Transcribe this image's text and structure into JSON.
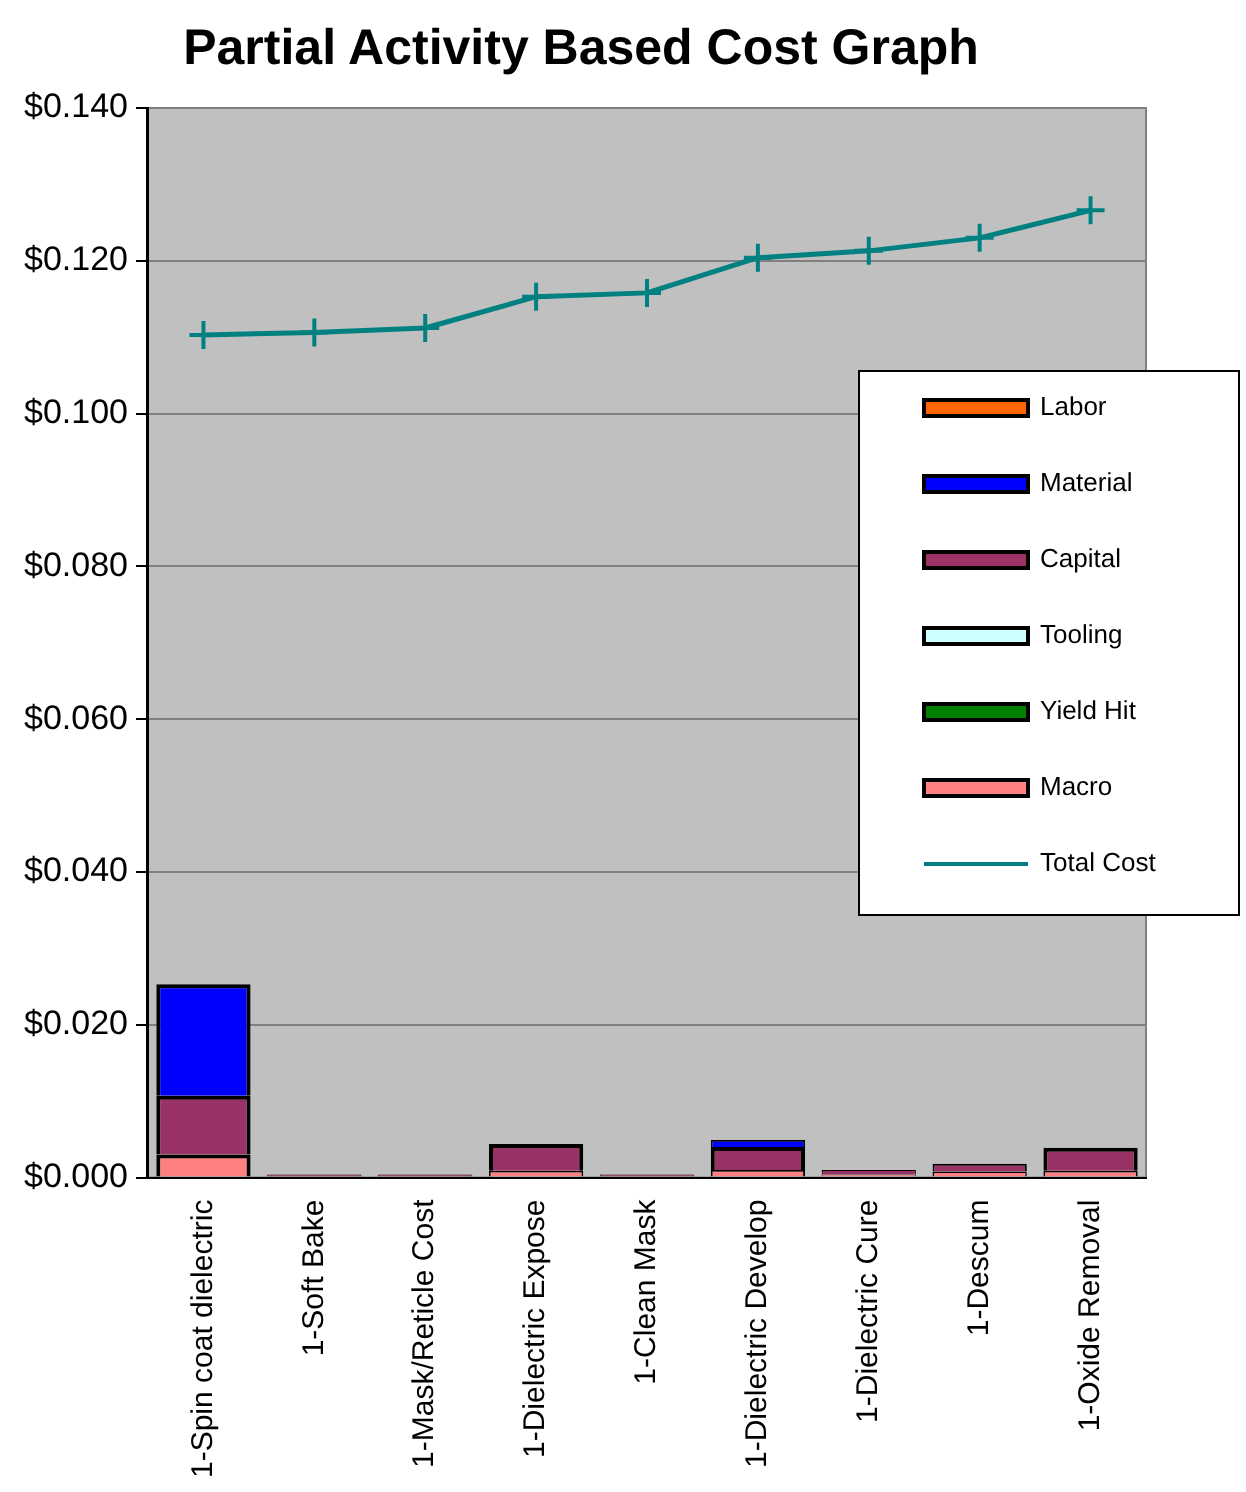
{
  "chart_data": {
    "type": "bar",
    "title": "Partial Activity Based Cost Graph",
    "stacked": true,
    "legend": "right",
    "grid": "y",
    "marker": "cross",
    "categories": [
      "1-Spin coat dielectric",
      "1-Soft Bake",
      "1-Mask/Reticle Cost",
      "1-Dielectric Expose",
      "1-Clean Mask",
      "1-Dielectric Develop",
      "1-Dielectric Cure",
      "1-Descum",
      "1-Oxide Removal"
    ],
    "ylim": [
      0,
      0.14
    ],
    "yticks": [
      {
        "value": 0,
        "label": "$0.000"
      },
      {
        "value": 0.02,
        "label": "$0.020"
      },
      {
        "value": 0.04,
        "label": "$0.040"
      },
      {
        "value": 0.06,
        "label": "$0.060"
      },
      {
        "value": 0.08,
        "label": "$0.080"
      },
      {
        "value": 0.1,
        "label": "$0.100"
      },
      {
        "value": 0.12,
        "label": "$0.120"
      },
      {
        "value": 0.14,
        "label": "$0.140"
      }
    ],
    "series": [
      {
        "name": "Macro",
        "color": "#ff8080",
        "values": [
          0.003,
          null,
          null,
          0.0009,
          null,
          0.001,
          0.0004,
          0.0008,
          0.0009
        ]
      },
      {
        "name": "Yield Hit",
        "color": "#008000",
        "values": [
          0,
          0,
          0,
          0,
          0,
          0,
          0,
          0,
          0
        ]
      },
      {
        "name": "Tooling",
        "color": "#ccffff",
        "values": [
          0,
          0,
          0,
          0,
          0,
          0,
          0,
          0,
          0
        ]
      },
      {
        "name": "Capital",
        "color": "#993366",
        "values": [
          0.0077,
          0.0004,
          0.0004,
          0.0035,
          0.0004,
          0.003,
          0.0006,
          0.001,
          0.003
        ]
      },
      {
        "name": "Material",
        "color": "#0000ff",
        "values": [
          0.0146,
          0,
          0,
          0,
          0,
          0.0009,
          0,
          0,
          0
        ]
      },
      {
        "name": "Labor",
        "color": "#ff6600",
        "values": [
          0,
          0,
          0,
          0,
          0,
          0,
          0,
          0,
          0
        ]
      },
      {
        "name": "Total Cost",
        "type": "line",
        "color": "#008080",
        "values": [
          0.1103,
          0.1106,
          0.1112,
          0.1153,
          0.1158,
          0.1204,
          0.1213,
          0.123,
          0.1266
        ]
      }
    ]
  }
}
